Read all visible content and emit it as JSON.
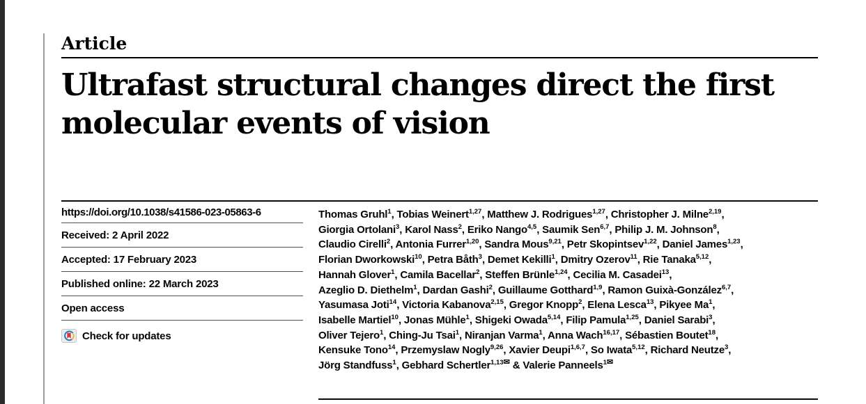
{
  "header": {
    "kicker": "Article",
    "title_line1": "Ultrafast structural changes direct the first",
    "title_line2": "molecular events of vision"
  },
  "meta": {
    "doi": "https://doi.org/10.1038/s41586-023-05863-6",
    "received": "Received: 2 April 2022",
    "accepted": "Accepted: 17 February 2023",
    "published": "Published online: 22 March 2023",
    "open_access": "Open access",
    "check_updates": "Check for updates"
  },
  "icons": {
    "crossmark": "crossmark-check-for-updates-badge",
    "mail_glyph": "✉"
  },
  "colors": {
    "rule_black": "#0a0a0a",
    "separator_gray": "#4f4f4f",
    "edge_bar": "#2b2b2b",
    "crossmark_blue": "#2e7dbc",
    "crossmark_red": "#d9383a",
    "crossmark_yellow": "#eab431"
  },
  "authors": {
    "mail_glyph": "✉",
    "lines": [
      [
        {
          "n": "Thomas Gruhl",
          "s": "1",
          "after": ", "
        },
        {
          "n": "Tobias Weinert",
          "s": "1,27",
          "after": ", "
        },
        {
          "n": "Matthew J. Rodrigues",
          "s": "1,27",
          "after": ", "
        },
        {
          "n": "Christopher J. Milne",
          "s": "2,19",
          "after": ","
        }
      ],
      [
        {
          "n": "Giorgia Ortolani",
          "s": "3",
          "after": ", "
        },
        {
          "n": "Karol Nass",
          "s": "2",
          "after": ", "
        },
        {
          "n": "Eriko Nango",
          "s": "4,5",
          "after": ", "
        },
        {
          "n": "Saumik Sen",
          "s": "6,7",
          "after": ", "
        },
        {
          "n": "Philip J. M. Johnson",
          "s": "8",
          "after": ","
        }
      ],
      [
        {
          "n": "Claudio Cirelli",
          "s": "2",
          "after": ", "
        },
        {
          "n": "Antonia Furrer",
          "s": "1,20",
          "after": ", "
        },
        {
          "n": "Sandra Mous",
          "s": "9,21",
          "after": ", "
        },
        {
          "n": "Petr Skopintsev",
          "s": "1,22",
          "after": ", "
        },
        {
          "n": "Daniel James",
          "s": "1,23",
          "after": ","
        }
      ],
      [
        {
          "n": "Florian Dworkowski",
          "s": "10",
          "after": ", "
        },
        {
          "n": "Petra Båth",
          "s": "3",
          "after": ", "
        },
        {
          "n": "Demet Kekilli",
          "s": "1",
          "after": ", "
        },
        {
          "n": "Dmitry Ozerov",
          "s": "11",
          "after": ", "
        },
        {
          "n": "Rie Tanaka",
          "s": "5,12",
          "after": ","
        }
      ],
      [
        {
          "n": "Hannah Glover",
          "s": "1",
          "after": ", "
        },
        {
          "n": "Camila Bacellar",
          "s": "2",
          "after": ", "
        },
        {
          "n": "Steffen Brünle",
          "s": "1,24",
          "after": ", "
        },
        {
          "n": "Cecilia M. Casadei",
          "s": "13",
          "after": ","
        }
      ],
      [
        {
          "n": "Azeglio D. Diethelm",
          "s": "1",
          "after": ", "
        },
        {
          "n": "Dardan Gashi",
          "s": "2",
          "after": ", "
        },
        {
          "n": "Guillaume Gotthard",
          "s": "1,9",
          "after": ", "
        },
        {
          "n": "Ramon Guixà-González",
          "s": "6,7",
          "after": ","
        }
      ],
      [
        {
          "n": "Yasumasa Joti",
          "s": "14",
          "after": ", "
        },
        {
          "n": "Victoria Kabanova",
          "s": "2,15",
          "after": ", "
        },
        {
          "n": "Gregor Knopp",
          "s": "2",
          "after": ", "
        },
        {
          "n": "Elena Lesca",
          "s": "13",
          "after": ", "
        },
        {
          "n": "Pikyee Ma",
          "s": "1",
          "after": ","
        }
      ],
      [
        {
          "n": "Isabelle Martiel",
          "s": "10",
          "after": ", "
        },
        {
          "n": "Jonas Mühle",
          "s": "1",
          "after": ", "
        },
        {
          "n": "Shigeki Owada",
          "s": "5,14",
          "after": ", "
        },
        {
          "n": "Filip Pamula",
          "s": "1,25",
          "after": ", "
        },
        {
          "n": "Daniel Sarabi",
          "s": "3",
          "after": ","
        }
      ],
      [
        {
          "n": "Oliver Tejero",
          "s": "1",
          "after": ", "
        },
        {
          "n": "Ching-Ju Tsai",
          "s": "1",
          "after": ", "
        },
        {
          "n": "Niranjan Varma",
          "s": "1",
          "after": ", "
        },
        {
          "n": "Anna Wach",
          "s": "16,17",
          "after": ", "
        },
        {
          "n": "Sébastien Boutet",
          "s": "18",
          "after": ","
        }
      ],
      [
        {
          "n": "Kensuke Tono",
          "s": "14",
          "after": ", "
        },
        {
          "n": "Przemyslaw Nogly",
          "s": "9,26",
          "after": ", "
        },
        {
          "n": "Xavier Deupi",
          "s": "1,6,7",
          "after": ", "
        },
        {
          "n": "So Iwata",
          "s": "5,12",
          "after": ", "
        },
        {
          "n": "Richard Neutze",
          "s": "3",
          "after": ","
        }
      ],
      [
        {
          "n": "Jörg Standfuss",
          "s": "1",
          "after": ", "
        },
        {
          "n": "Gebhard Schertler",
          "s": "1,13",
          "m": true,
          "after": " & "
        },
        {
          "n": "Valerie Panneels",
          "s": "1",
          "m": true,
          "after": ""
        }
      ]
    ]
  }
}
